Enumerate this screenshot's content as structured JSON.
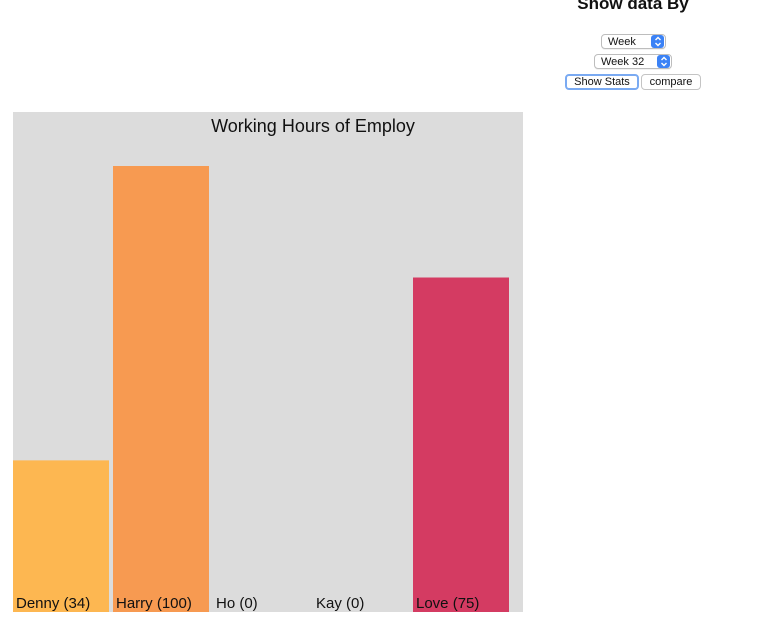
{
  "controls": {
    "title": "Show data By",
    "period_type": "Week",
    "period_value": "Week 32",
    "show_stats_label": "Show Stats",
    "compare_label": "compare",
    "accent_color": "#3b82f6"
  },
  "chart_data": {
    "type": "bar",
    "title": "Working Hours of Employ",
    "background": "#dcdcdc",
    "categories": [
      "Denny",
      "Harry",
      "Ho",
      "Kay",
      "Love"
    ],
    "values": [
      34,
      100,
      0,
      0,
      75
    ],
    "tick_labels": [
      "Denny (34)",
      "Harry (100)",
      "Ho (0)",
      "Kay (0)",
      "Love (75)"
    ],
    "colors": [
      "#fdb751",
      "#f79a51",
      "#f3734e",
      "#e6525b",
      "#d43b62"
    ],
    "ylim": [
      0,
      100
    ],
    "grid": false
  }
}
